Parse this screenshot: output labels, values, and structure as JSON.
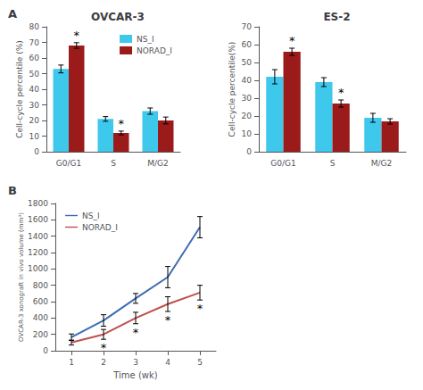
{
  "chart_data": [
    {
      "type": "bar",
      "title": "OVCAR-3",
      "categories": [
        "G0/G1",
        "S",
        "M/G2"
      ],
      "series": [
        {
          "name": "NS_I",
          "color": "#3EC8EC",
          "values": [
            53,
            21,
            26
          ],
          "errors": [
            2.5,
            1.5,
            2.0
          ]
        },
        {
          "name": "NORAD_I",
          "color": "#9B1B1B",
          "values": [
            68,
            12,
            20
          ],
          "errors": [
            1.8,
            1.2,
            2.2
          ]
        }
      ],
      "ylabel": "Cell-cycle percentile (%)",
      "ylim": [
        0,
        80
      ],
      "yticks": [
        0,
        10,
        20,
        30,
        40,
        50,
        60,
        70,
        80
      ],
      "legend": "upper right",
      "grid": false,
      "annotations": [
        {
          "text": "A"
        },
        {
          "text": "*",
          "series": "NORAD_I",
          "category": "G0/G1"
        },
        {
          "text": "*",
          "series": "NORAD_I",
          "category": "S"
        }
      ]
    },
    {
      "type": "bar",
      "title": "ES-2",
      "categories": [
        "G0/G1",
        "S",
        "M/G2"
      ],
      "series": [
        {
          "name": "NS_I",
          "color": "#3EC8EC",
          "values": [
            42,
            39,
            19
          ],
          "errors": [
            4.0,
            2.5,
            2.5
          ]
        },
        {
          "name": "NORAD_I",
          "color": "#9B1B1B",
          "values": [
            56,
            27,
            17
          ],
          "errors": [
            2.0,
            2.0,
            1.5
          ]
        }
      ],
      "ylabel": "Cell-cycle percentile(%)",
      "ylim": [
        0,
        70
      ],
      "yticks": [
        0,
        10,
        20,
        30,
        40,
        50,
        60,
        70
      ],
      "grid": false,
      "annotations": [
        {
          "text": "*",
          "series": "NORAD_I",
          "category": "G0/G1"
        },
        {
          "text": "*",
          "series": "NORAD_I",
          "category": "S"
        }
      ]
    },
    {
      "type": "line",
      "x": [
        1,
        2,
        3,
        4,
        5
      ],
      "series": [
        {
          "name": "NS_I",
          "color": "#3C6CB4",
          "values": [
            165,
            370,
            640,
            900,
            1510
          ],
          "errors": [
            40,
            70,
            60,
            130,
            130
          ]
        },
        {
          "name": "NORAD_I",
          "color": "#C0504D",
          "values": [
            100,
            200,
            400,
            570,
            710
          ],
          "errors": [
            30,
            60,
            70,
            90,
            90
          ]
        }
      ],
      "xlabel": "Time (wk)",
      "ylabel": "OVCAR-3 xonograft in vivo volume (mm³)",
      "xlim": [
        0.5,
        5.5
      ],
      "xticks": [
        1,
        2,
        3,
        4,
        5
      ],
      "ylim": [
        0,
        1800
      ],
      "yticks": [
        0,
        200,
        400,
        600,
        800,
        1000,
        1200,
        1400,
        1600,
        1800
      ],
      "legend": "upper left",
      "grid": false,
      "annotations": [
        {
          "text": "B"
        },
        {
          "text": "*",
          "series": "NORAD_I",
          "x": 2
        },
        {
          "text": "*",
          "series": "NORAD_I",
          "x": 3
        },
        {
          "text": "*",
          "series": "NORAD_I",
          "x": 4
        },
        {
          "text": "*",
          "series": "NORAD_I",
          "x": 5
        }
      ]
    }
  ]
}
